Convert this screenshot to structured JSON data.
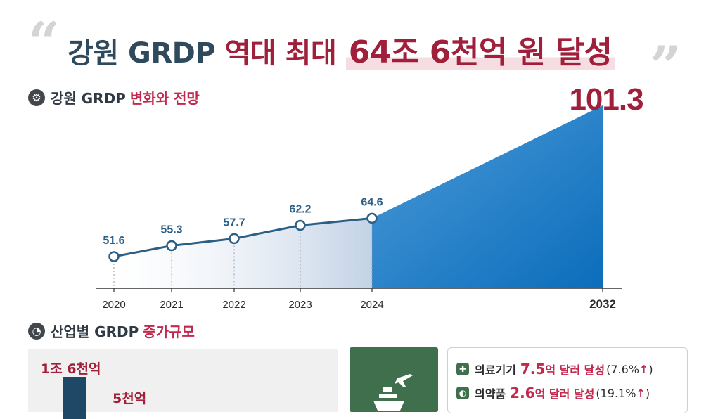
{
  "headline": {
    "part1": "강원 GRDP",
    "part2": "역대 최대",
    "part3": "64조 6천억 원 달성"
  },
  "section1": {
    "title_dark": "강원 GRDP",
    "title_red": "변화와 전망"
  },
  "section2": {
    "title_dark": "산업별 GRDP",
    "title_red": "증가규모"
  },
  "chart_data": {
    "type": "area",
    "x": [
      "2020",
      "2021",
      "2022",
      "2023",
      "2024",
      "2032"
    ],
    "values": [
      51.6,
      55.3,
      57.7,
      62.2,
      64.6,
      101.3
    ],
    "value_labels": [
      "51.6",
      "55.3",
      "57.7",
      "62.2",
      "64.6",
      "101.3"
    ],
    "title": "",
    "xlabel": "",
    "ylabel": "",
    "grid": false,
    "colors": {
      "actual_line": "#2b5f86",
      "forecast_fill": "#0d79c9",
      "highlight": "#a0203c"
    }
  },
  "industry_bars": {
    "label_1": "1조 6천억",
    "label_2": "5천억"
  },
  "exports": {
    "icon": "ship-plane-icon",
    "rows": [
      {
        "item": "의료기기",
        "value": "7.5",
        "unit": "억 달러 달성",
        "pct": "(7.6%",
        "arrow": "↑",
        "close": ")"
      },
      {
        "item": "의약품",
        "value": "2.6",
        "unit": "억 달러 달성",
        "pct": "(19.1%",
        "arrow": "↑",
        "close": ")"
      }
    ]
  }
}
